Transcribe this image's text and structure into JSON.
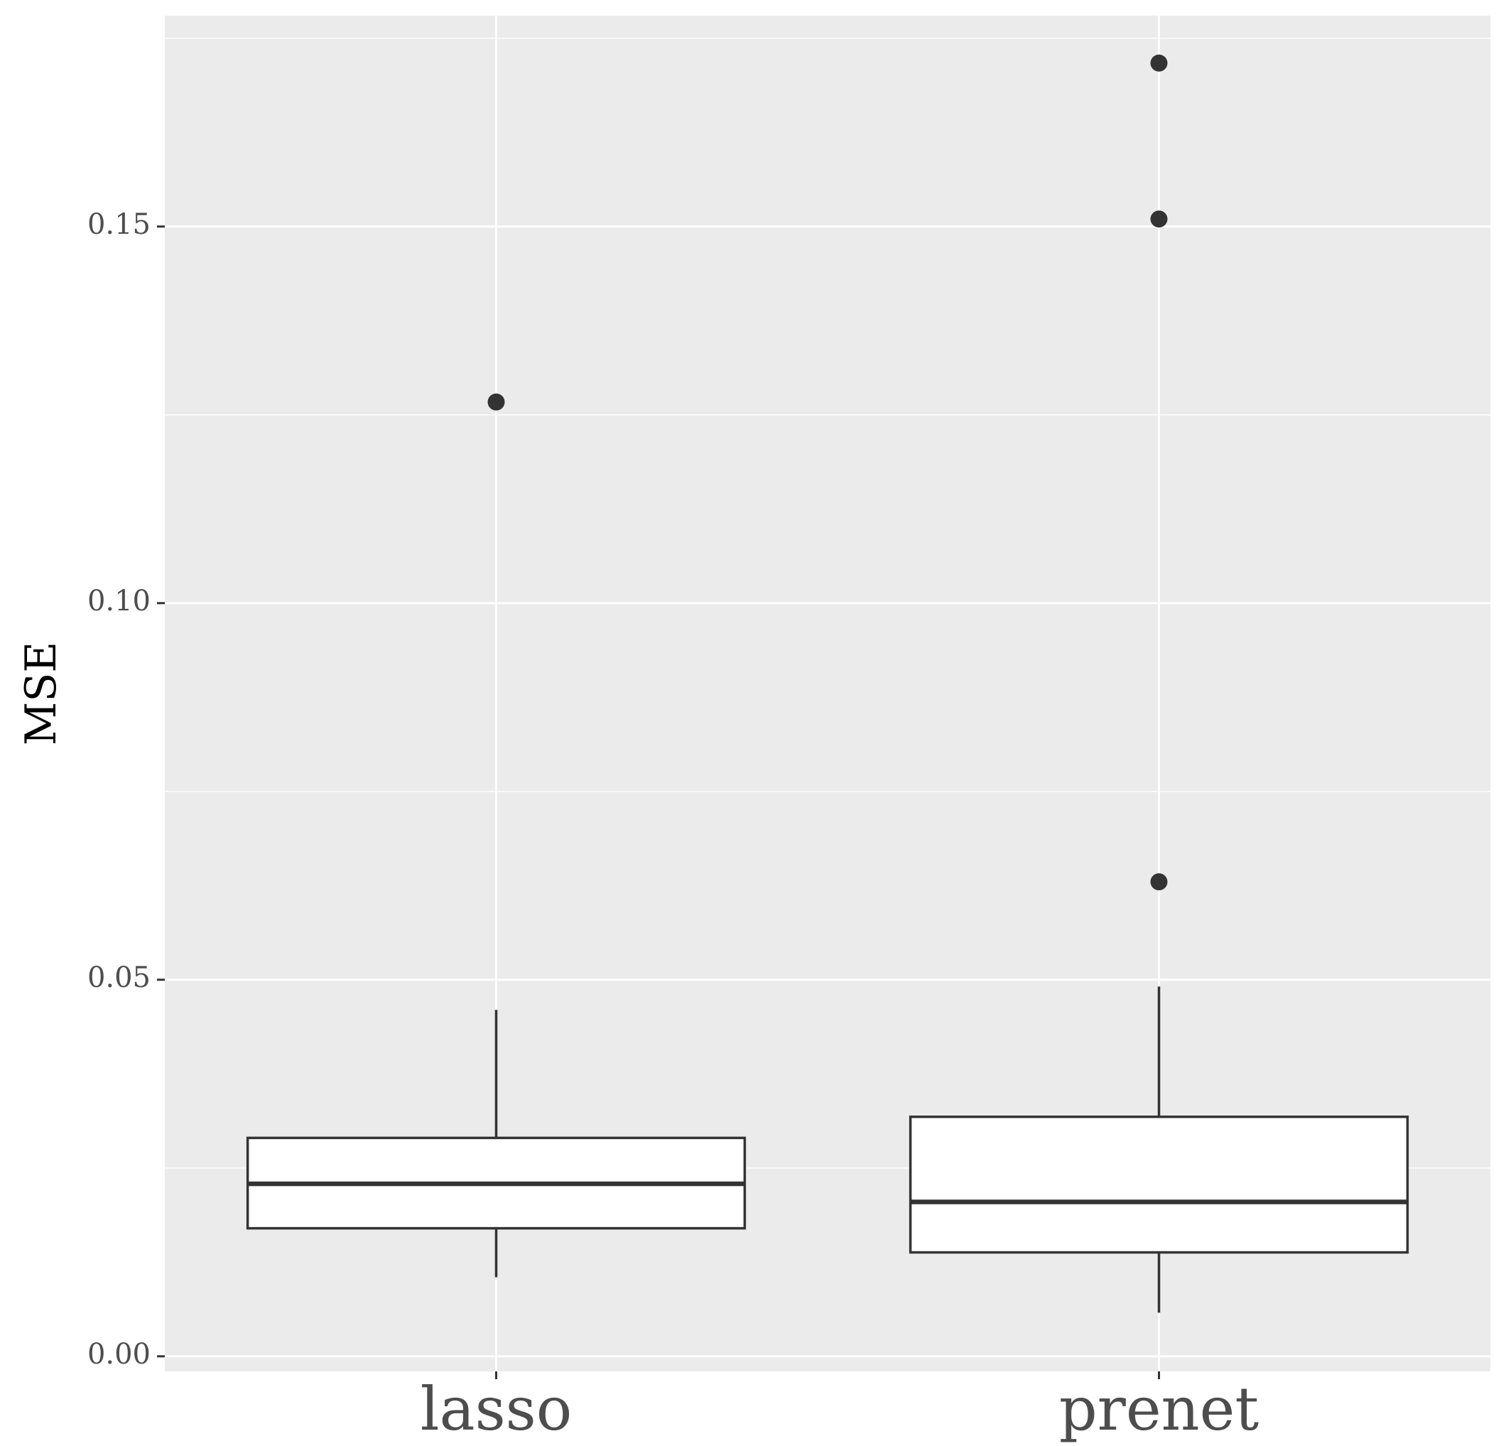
{
  "chart_data": {
    "type": "boxplot",
    "title": "",
    "xlabel": "",
    "ylabel": "MSE",
    "ylim": [
      -0.002,
      0.178
    ],
    "yticks": [
      0.0,
      0.05,
      0.1,
      0.15
    ],
    "ytick_labels": [
      "0.00",
      "0.05",
      "0.10",
      "0.15"
    ],
    "categories": [
      "lasso",
      "prenet"
    ],
    "boxes": [
      {
        "category": "lasso",
        "whisker_low": 0.0105,
        "q1": 0.017,
        "median": 0.0229,
        "q3": 0.029,
        "whisker_high": 0.046,
        "outliers": [
          0.1267
        ]
      },
      {
        "category": "prenet",
        "whisker_low": 0.0058,
        "q1": 0.0138,
        "median": 0.0205,
        "q3": 0.0318,
        "whisker_high": 0.0491,
        "outliers": [
          0.063,
          0.151,
          0.1717
        ]
      }
    ],
    "grid": true,
    "legend": "none",
    "colors": {
      "panel": "#ebebeb",
      "grid": "#ffffff",
      "box_fill": "#ffffff",
      "box_line": "#333333",
      "outlier": "#333333"
    }
  }
}
